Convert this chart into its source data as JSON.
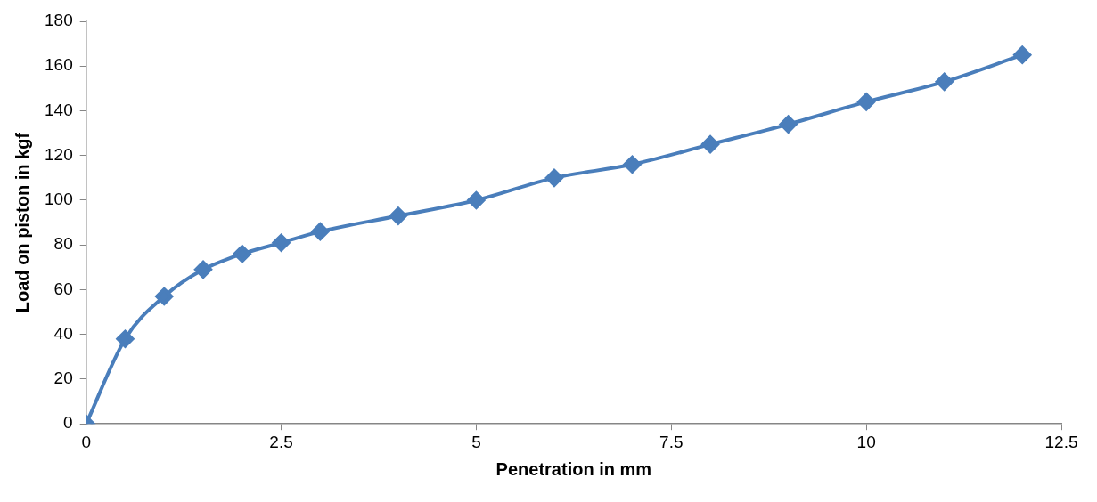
{
  "chart_data": {
    "type": "line",
    "xlabel": "Penetration in mm",
    "ylabel": "Load on piston in kgf",
    "x": [
      0,
      0.5,
      1,
      1.5,
      2,
      2.5,
      3,
      4,
      5,
      6,
      7,
      8,
      9,
      10,
      11,
      12
    ],
    "series": [
      {
        "color": "#4a7ebb",
        "values": [
          0,
          38,
          57,
          69,
          76,
          81,
          86,
          93,
          100,
          110,
          116,
          125,
          134,
          144,
          153,
          165
        ]
      }
    ],
    "xlim": [
      0,
      12.5
    ],
    "xticks": [
      0,
      2.5,
      5,
      7.5,
      10,
      12.5
    ],
    "ylim": [
      0,
      180
    ],
    "yticks": [
      0,
      20,
      40,
      60,
      80,
      100,
      120,
      140,
      160,
      180
    ],
    "grid": false,
    "legend": false,
    "marker": "diamond",
    "line_style": "solid"
  }
}
